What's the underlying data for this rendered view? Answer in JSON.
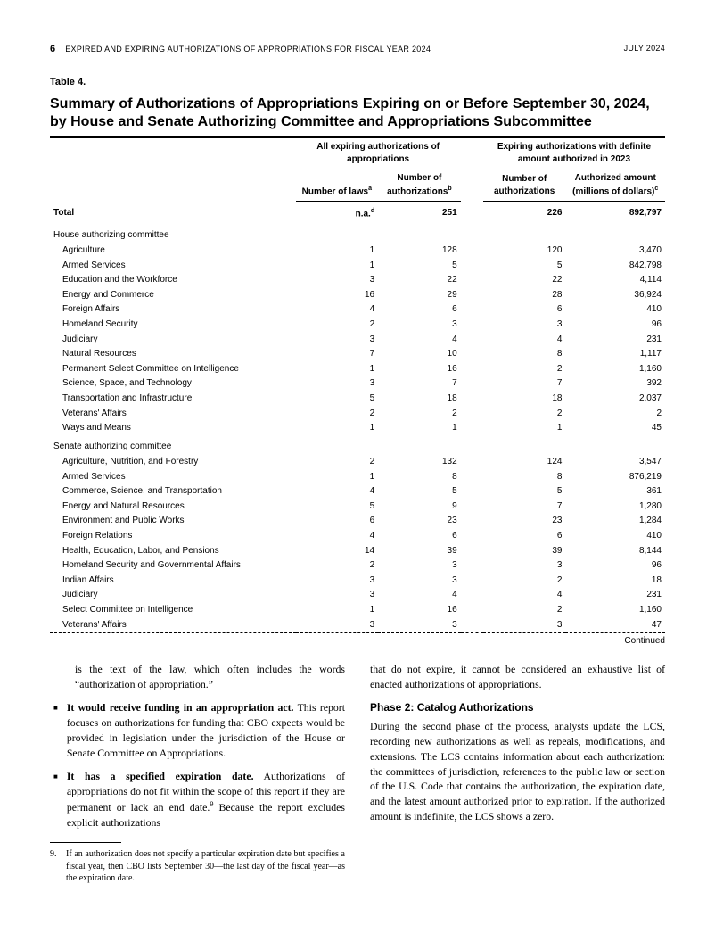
{
  "header": {
    "page_num": "6",
    "doc_title": "EXPIRED AND EXPIRING AUTHORIZATIONS OF APPROPRIATIONS FOR FISCAL YEAR 2024",
    "date": "JULY 2024"
  },
  "table": {
    "label": "Table 4.",
    "title": "Summary of Authorizations of Appropriations Expiring on or Before September 30, 2024, by House and Senate Authorizing Committee and Appropriations Subcommittee",
    "group_head_left": "All expiring authorizations of appropriations",
    "group_head_right": "Expiring authorizations with definite amount authorized in 2023",
    "col1": "Number of laws",
    "col1_sup": "a",
    "col2": "Number of authorizations",
    "col2_sup": "b",
    "col3": "Number of authorizations",
    "col4": "Authorized amount (millions of dollars)",
    "col4_sup": "c",
    "total_label": "Total",
    "total": [
      "n.a.",
      "251",
      "226",
      "892,797"
    ],
    "total_sup": "d",
    "section_house": "House authorizing committee",
    "house_rows": [
      {
        "label": "Agriculture",
        "v": [
          "1",
          "128",
          "120",
          "3,470"
        ]
      },
      {
        "label": "Armed Services",
        "v": [
          "1",
          "5",
          "5",
          "842,798"
        ]
      },
      {
        "label": "Education and the Workforce",
        "v": [
          "3",
          "22",
          "22",
          "4,114"
        ]
      },
      {
        "label": "Energy and Commerce",
        "v": [
          "16",
          "29",
          "28",
          "36,924"
        ]
      },
      {
        "label": "Foreign Affairs",
        "v": [
          "4",
          "6",
          "6",
          "410"
        ]
      },
      {
        "label": "Homeland Security",
        "v": [
          "2",
          "3",
          "3",
          "96"
        ]
      },
      {
        "label": "Judiciary",
        "v": [
          "3",
          "4",
          "4",
          "231"
        ]
      },
      {
        "label": "Natural Resources",
        "v": [
          "7",
          "10",
          "8",
          "1,117"
        ]
      },
      {
        "label": "Permanent Select Committee on Intelligence",
        "v": [
          "1",
          "16",
          "2",
          "1,160"
        ]
      },
      {
        "label": "Science, Space, and Technology",
        "v": [
          "3",
          "7",
          "7",
          "392"
        ]
      },
      {
        "label": "Transportation and Infrastructure",
        "v": [
          "5",
          "18",
          "18",
          "2,037"
        ]
      },
      {
        "label": "Veterans' Affairs",
        "v": [
          "2",
          "2",
          "2",
          "2"
        ]
      },
      {
        "label": "Ways and Means",
        "v": [
          "1",
          "1",
          "1",
          "45"
        ]
      }
    ],
    "section_senate": "Senate authorizing committee",
    "senate_rows": [
      {
        "label": "Agriculture, Nutrition, and Forestry",
        "v": [
          "2",
          "132",
          "124",
          "3,547"
        ]
      },
      {
        "label": "Armed Services",
        "v": [
          "1",
          "8",
          "8",
          "876,219"
        ]
      },
      {
        "label": "Commerce, Science, and Transportation",
        "v": [
          "4",
          "5",
          "5",
          "361"
        ]
      },
      {
        "label": "Energy and Natural Resources",
        "v": [
          "5",
          "9",
          "7",
          "1,280"
        ]
      },
      {
        "label": "Environment and Public Works",
        "v": [
          "6",
          "23",
          "23",
          "1,284"
        ]
      },
      {
        "label": "Foreign Relations",
        "v": [
          "4",
          "6",
          "6",
          "410"
        ]
      },
      {
        "label": "Health, Education, Labor, and Pensions",
        "v": [
          "14",
          "39",
          "39",
          "8,144"
        ]
      },
      {
        "label": "Homeland Security and Governmental Affairs",
        "v": [
          "2",
          "3",
          "3",
          "96"
        ]
      },
      {
        "label": "Indian Affairs",
        "v": [
          "3",
          "3",
          "2",
          "18"
        ]
      },
      {
        "label": "Judiciary",
        "v": [
          "3",
          "4",
          "4",
          "231"
        ]
      },
      {
        "label": "Select Committee on Intelligence",
        "v": [
          "1",
          "16",
          "2",
          "1,160"
        ]
      },
      {
        "label": "Veterans' Affairs",
        "v": [
          "3",
          "3",
          "3",
          "47"
        ]
      }
    ],
    "continued": "Continued"
  },
  "body": {
    "left": {
      "p1": "is the text of the law, which often includes the words “authorization of appropriation.”",
      "b1_strong": "It would receive funding in an appropriation act.",
      "b1_rest": " This report focuses on authorizations for funding that CBO expects would be provided in legislation under the jurisdiction of the House or Senate Committee on Appropriations.",
      "b2_strong": "It has a specified expiration date.",
      "b2_rest_a": " Authorizations of appropriations do not fit within the scope of this report if they are permanent or lack an end date.",
      "b2_sup": "9",
      "b2_rest_b": " Because the report excludes explicit authorizations",
      "fn_num": "9.",
      "fn_text": "If an authorization does not specify a particular expiration date but specifies a fiscal year, then CBO lists September 30—the last day of the fiscal year—as the expiration date."
    },
    "right": {
      "p1": "that do not expire, it cannot be considered an exhaustive list of enacted authorizations of appropriations.",
      "h2": "Phase 2: Catalog Authorizations",
      "p2": "During the second phase of the process, analysts update the LCS, recording new authorizations as well as repeals, modifications, and extensions. The LCS contains information about each authorization: the committees of jurisdiction, references to the public law or section of the U.S. Code that contains the authorization, the expiration date, and the latest amount authorized prior to expiration. If the authorized amount is indefinite, the LCS shows a zero."
    }
  },
  "style": {
    "colors": {
      "text": "#000000",
      "bg": "#ffffff"
    },
    "fonts": {
      "serif": "Georgia",
      "sans": "Arial"
    },
    "col_widths": {
      "label": 262,
      "num": 88,
      "amt": 106
    }
  }
}
